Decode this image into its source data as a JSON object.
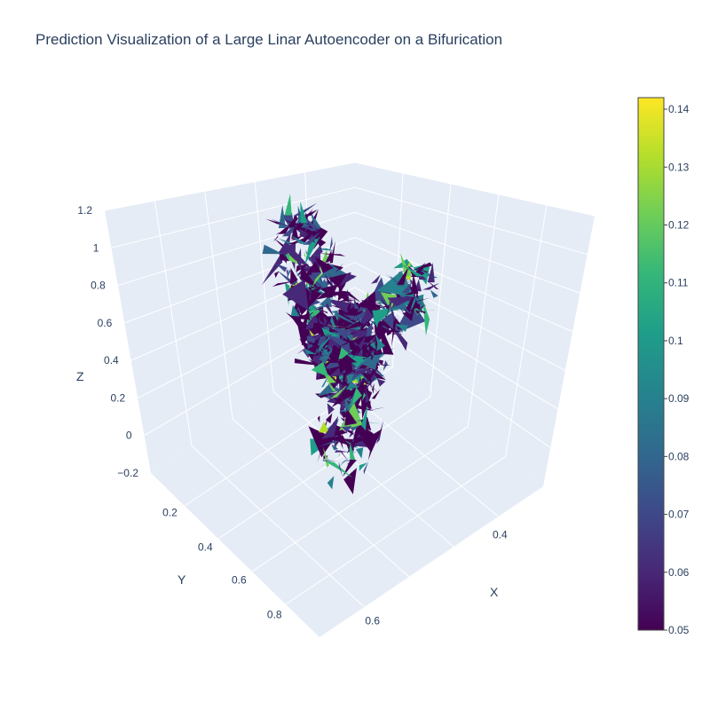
{
  "chart_data": {
    "type": "surface3d",
    "title": "Prediction Visualization of a Large Linar Autoencoder on a Bifurication",
    "axes": {
      "x": {
        "label": "X",
        "ticks": [
          "0.4",
          "0.6"
        ]
      },
      "y": {
        "label": "Y",
        "ticks": [
          "0.2",
          "0.4",
          "0.6",
          "0.8"
        ]
      },
      "z": {
        "label": "Z",
        "ticks": [
          "−0.2",
          "0",
          "0.2",
          "0.4",
          "0.6",
          "0.8",
          "1",
          "1.2"
        ],
        "range": [
          -0.2,
          1.2
        ]
      }
    },
    "colorbar": {
      "colorscale": "Viridis",
      "range": [
        0.05,
        0.142
      ],
      "ticks": [
        "0.05",
        "0.06",
        "0.07",
        "0.08",
        "0.09",
        "0.1",
        "0.11",
        "0.12",
        "0.13",
        "0.14"
      ]
    },
    "shape": "bifurcation (Y-shaped tube)",
    "colors": {
      "scene_background": "#e5ecf6",
      "grid": "#ffffff",
      "text": "#2a3f5f",
      "viridis": [
        "#440154",
        "#482878",
        "#3e4989",
        "#31688e",
        "#26828e",
        "#1f9e89",
        "#35b779",
        "#6ece58",
        "#b5de2b",
        "#fde725"
      ]
    }
  }
}
